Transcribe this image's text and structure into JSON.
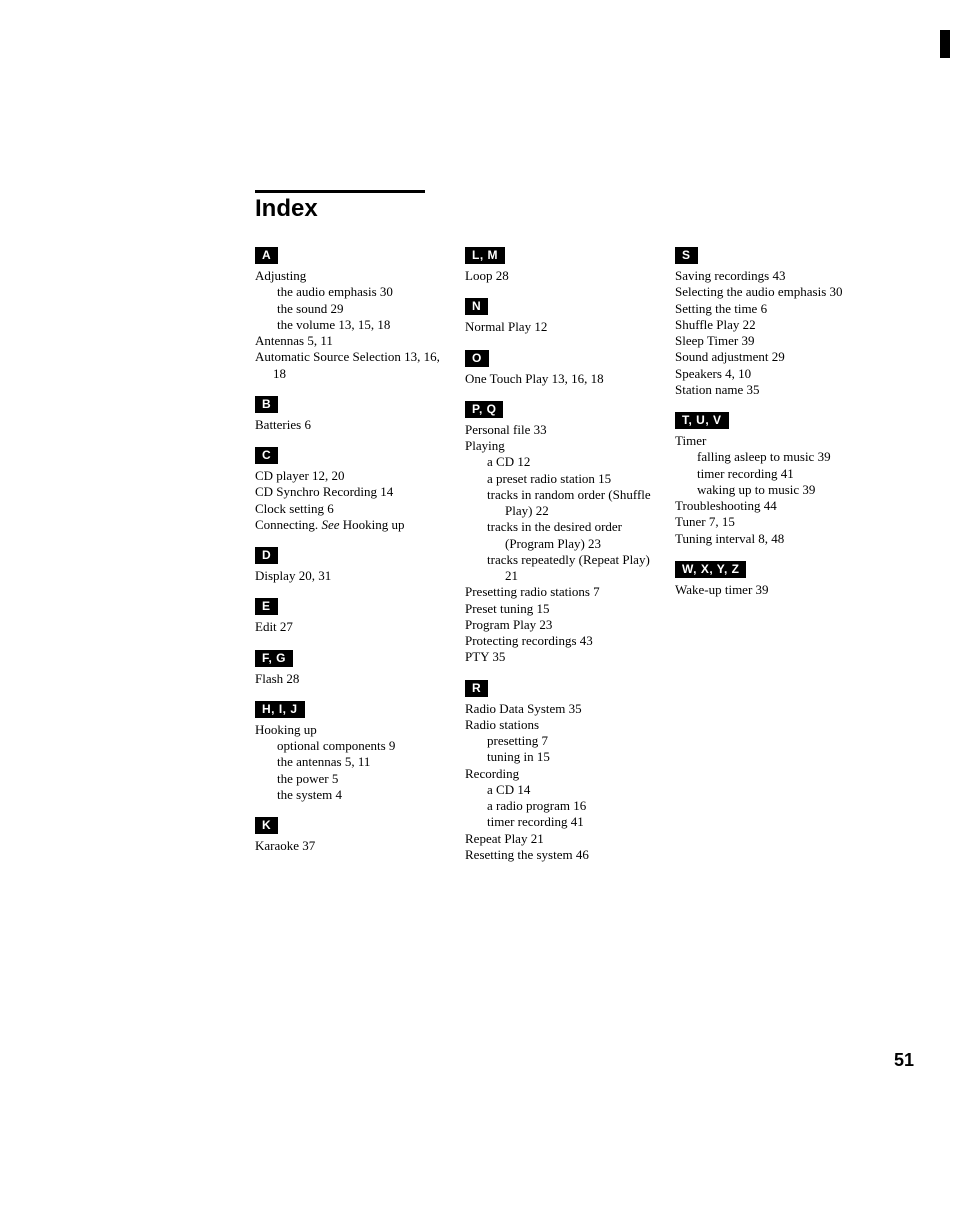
{
  "title": "Index",
  "page_number": "51",
  "columns": [
    {
      "groups": [
        {
          "letter": "A",
          "first": true,
          "entries": [
            {
              "text": "Adjusting",
              "subs": [
                {
                  "text": "the audio emphasis  30"
                },
                {
                  "text": "the sound  29"
                },
                {
                  "text": "the volume  13, 15, 18"
                }
              ]
            },
            {
              "text": "Antennas  5, 11"
            },
            {
              "text": "Automatic Source Selection  13, 16, 18"
            }
          ]
        },
        {
          "letter": "B",
          "entries": [
            {
              "text": "Batteries  6"
            }
          ]
        },
        {
          "letter": "C",
          "entries": [
            {
              "text": "CD player 12, 20"
            },
            {
              "text": "CD Synchro Recording  14"
            },
            {
              "text": "Clock setting  6"
            },
            {
              "text": "Connecting. See Hooking up",
              "italic_word": true
            }
          ]
        },
        {
          "letter": "D",
          "entries": [
            {
              "text": "Display  20, 31"
            }
          ]
        },
        {
          "letter": "E",
          "entries": [
            {
              "text": "Edit  27"
            }
          ]
        },
        {
          "letter": "F, G",
          "entries": [
            {
              "text": "Flash  28"
            }
          ]
        },
        {
          "letter": "H, I, J",
          "entries": [
            {
              "text": "Hooking up",
              "subs": [
                {
                  "text": "optional components  9"
                },
                {
                  "text": "the antennas  5, 11"
                },
                {
                  "text": "the power  5"
                },
                {
                  "text": "the system  4"
                }
              ]
            }
          ]
        },
        {
          "letter": "K",
          "entries": [
            {
              "text": "Karaoke  37"
            }
          ]
        }
      ]
    },
    {
      "groups": [
        {
          "letter": "L, M",
          "first": true,
          "entries": [
            {
              "text": "Loop  28"
            }
          ]
        },
        {
          "letter": "N",
          "entries": [
            {
              "text": "Normal Play  12"
            }
          ]
        },
        {
          "letter": "O",
          "entries": [
            {
              "text": "One Touch Play  13, 16, 18"
            }
          ]
        },
        {
          "letter": "P, Q",
          "entries": [
            {
              "text": "Personal file  33"
            },
            {
              "text": "Playing",
              "subs": [
                {
                  "text": "a CD  12"
                },
                {
                  "text": "a preset radio station  15"
                },
                {
                  "text": "tracks in random order (Shuffle Play) 22"
                },
                {
                  "text": "tracks in the desired order (Program Play)  23"
                },
                {
                  "text": "tracks repeatedly (Repeat Play)  21"
                }
              ]
            },
            {
              "text": "Presetting radio stations  7"
            },
            {
              "text": "Preset tuning  15"
            },
            {
              "text": "Program Play  23"
            },
            {
              "text": "Protecting recordings  43"
            },
            {
              "text": "PTY  35"
            }
          ]
        },
        {
          "letter": "R",
          "entries": [
            {
              "text": "Radio Data System  35"
            },
            {
              "text": "Radio stations",
              "subs": [
                {
                  "text": "presetting  7"
                },
                {
                  "text": "tuning in  15"
                }
              ]
            },
            {
              "text": "Recording",
              "subs": [
                {
                  "text": "a CD  14"
                },
                {
                  "text": "a radio program 16"
                },
                {
                  "text": "timer recording  41"
                }
              ]
            },
            {
              "text": "Repeat Play  21"
            },
            {
              "text": "Resetting the system  46"
            }
          ]
        }
      ]
    },
    {
      "groups": [
        {
          "letter": "S",
          "first": true,
          "entries": [
            {
              "text": "Saving recordings  43"
            },
            {
              "text": "Selecting the audio emphasis  30"
            },
            {
              "text": "Setting the time  6"
            },
            {
              "text": "Shuffle Play  22"
            },
            {
              "text": "Sleep Timer  39"
            },
            {
              "text": "Sound adjustment  29"
            },
            {
              "text": "Speakers  4, 10"
            },
            {
              "text": "Station name  35"
            }
          ]
        },
        {
          "letter": "T, U, V",
          "entries": [
            {
              "text": "Timer",
              "subs": [
                {
                  "text": "falling asleep to music  39"
                },
                {
                  "text": "timer recording  41"
                },
                {
                  "text": "waking up to music  39"
                }
              ]
            },
            {
              "text": "Troubleshooting  44"
            },
            {
              "text": "Tuner  7, 15"
            },
            {
              "text": "Tuning interval  8, 48"
            }
          ]
        },
        {
          "letter": "W, X, Y, Z",
          "entries": [
            {
              "text": "Wake-up timer  39"
            }
          ]
        }
      ]
    }
  ]
}
